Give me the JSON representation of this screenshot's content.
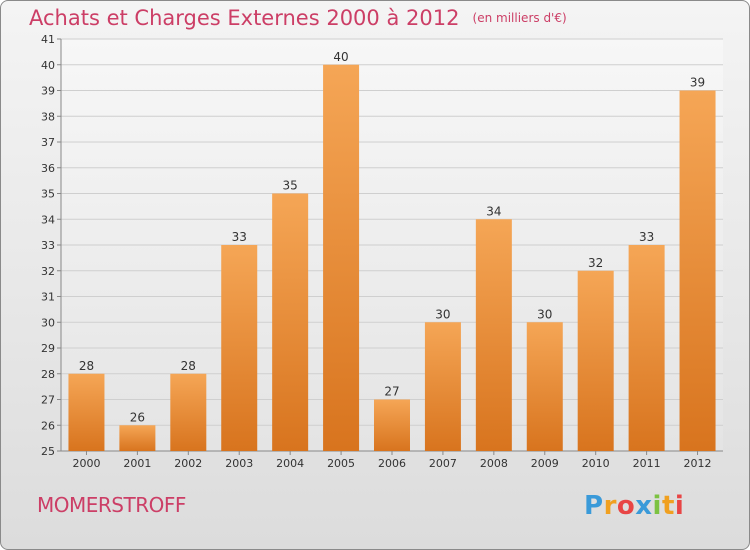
{
  "header": {
    "title": "Achats et Charges Externes 2000 à 2012",
    "unit": "(en milliers d'€)"
  },
  "commune": "MOMERSTROFF",
  "brand": {
    "letters": [
      "P",
      "r",
      "o",
      "x",
      "i",
      "t",
      "i"
    ],
    "colors": [
      "#3a9ad9",
      "#f0a020",
      "#e84545",
      "#3a9ad9",
      "#7cc242",
      "#f0a020",
      "#e84545"
    ]
  },
  "colors": {
    "bar_top": "#f5a656",
    "bar_bottom": "#d8741e",
    "accent": "#cc3e66"
  },
  "chart_data": {
    "type": "bar",
    "categories": [
      "2000",
      "2001",
      "2002",
      "2003",
      "2004",
      "2005",
      "2006",
      "2007",
      "2008",
      "2009",
      "2010",
      "2011",
      "2012"
    ],
    "values": [
      28,
      26,
      28,
      33,
      35,
      40,
      27,
      30,
      34,
      30,
      32,
      33,
      39
    ],
    "ylim": [
      25,
      41
    ],
    "yticks": [
      25,
      26,
      27,
      28,
      29,
      30,
      31,
      32,
      33,
      34,
      35,
      36,
      37,
      38,
      39,
      40,
      41
    ],
    "grid": true,
    "xlabel": "",
    "ylabel": ""
  }
}
